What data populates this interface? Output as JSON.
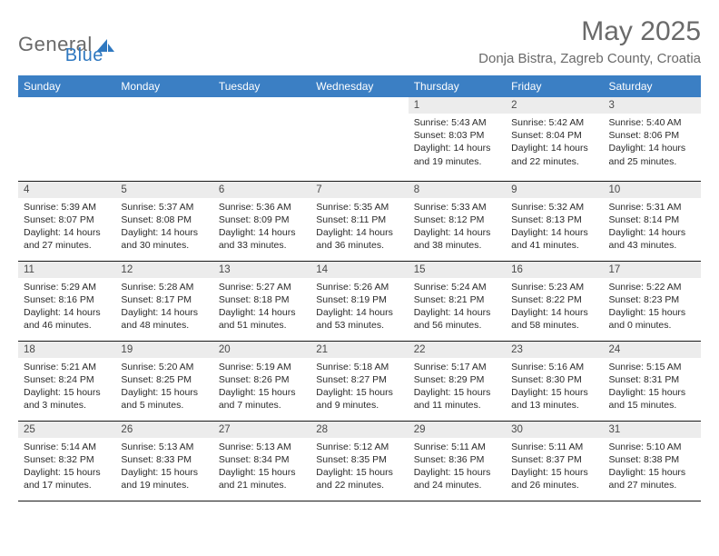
{
  "logo": {
    "part1": "General",
    "part2": "Blue"
  },
  "title": "May 2025",
  "location": "Donja Bistra, Zagreb County, Croatia",
  "colors": {
    "header_blue": "#3b7fc4",
    "title_gray": "#6a6a6a",
    "daynum_bg": "#ececec",
    "text": "#333333",
    "border": "#1a1a1a",
    "logo_blue": "#2f78c0"
  },
  "typography": {
    "title_fontsize": 30,
    "location_fontsize": 15,
    "header_fontsize": 12,
    "daynum_fontsize": 11.5,
    "details_fontsize": 10.5
  },
  "calendar": {
    "type": "table",
    "columns": [
      "Sunday",
      "Monday",
      "Tuesday",
      "Wednesday",
      "Thursday",
      "Friday",
      "Saturday"
    ],
    "start_weekday_index": 4,
    "days": [
      {
        "n": 1,
        "sunrise": "5:43 AM",
        "sunset": "8:03 PM",
        "daylight": "14 hours and 19 minutes."
      },
      {
        "n": 2,
        "sunrise": "5:42 AM",
        "sunset": "8:04 PM",
        "daylight": "14 hours and 22 minutes."
      },
      {
        "n": 3,
        "sunrise": "5:40 AM",
        "sunset": "8:06 PM",
        "daylight": "14 hours and 25 minutes."
      },
      {
        "n": 4,
        "sunrise": "5:39 AM",
        "sunset": "8:07 PM",
        "daylight": "14 hours and 27 minutes."
      },
      {
        "n": 5,
        "sunrise": "5:37 AM",
        "sunset": "8:08 PM",
        "daylight": "14 hours and 30 minutes."
      },
      {
        "n": 6,
        "sunrise": "5:36 AM",
        "sunset": "8:09 PM",
        "daylight": "14 hours and 33 minutes."
      },
      {
        "n": 7,
        "sunrise": "5:35 AM",
        "sunset": "8:11 PM",
        "daylight": "14 hours and 36 minutes."
      },
      {
        "n": 8,
        "sunrise": "5:33 AM",
        "sunset": "8:12 PM",
        "daylight": "14 hours and 38 minutes."
      },
      {
        "n": 9,
        "sunrise": "5:32 AM",
        "sunset": "8:13 PM",
        "daylight": "14 hours and 41 minutes."
      },
      {
        "n": 10,
        "sunrise": "5:31 AM",
        "sunset": "8:14 PM",
        "daylight": "14 hours and 43 minutes."
      },
      {
        "n": 11,
        "sunrise": "5:29 AM",
        "sunset": "8:16 PM",
        "daylight": "14 hours and 46 minutes."
      },
      {
        "n": 12,
        "sunrise": "5:28 AM",
        "sunset": "8:17 PM",
        "daylight": "14 hours and 48 minutes."
      },
      {
        "n": 13,
        "sunrise": "5:27 AM",
        "sunset": "8:18 PM",
        "daylight": "14 hours and 51 minutes."
      },
      {
        "n": 14,
        "sunrise": "5:26 AM",
        "sunset": "8:19 PM",
        "daylight": "14 hours and 53 minutes."
      },
      {
        "n": 15,
        "sunrise": "5:24 AM",
        "sunset": "8:21 PM",
        "daylight": "14 hours and 56 minutes."
      },
      {
        "n": 16,
        "sunrise": "5:23 AM",
        "sunset": "8:22 PM",
        "daylight": "14 hours and 58 minutes."
      },
      {
        "n": 17,
        "sunrise": "5:22 AM",
        "sunset": "8:23 PM",
        "daylight": "15 hours and 0 minutes."
      },
      {
        "n": 18,
        "sunrise": "5:21 AM",
        "sunset": "8:24 PM",
        "daylight": "15 hours and 3 minutes."
      },
      {
        "n": 19,
        "sunrise": "5:20 AM",
        "sunset": "8:25 PM",
        "daylight": "15 hours and 5 minutes."
      },
      {
        "n": 20,
        "sunrise": "5:19 AM",
        "sunset": "8:26 PM",
        "daylight": "15 hours and 7 minutes."
      },
      {
        "n": 21,
        "sunrise": "5:18 AM",
        "sunset": "8:27 PM",
        "daylight": "15 hours and 9 minutes."
      },
      {
        "n": 22,
        "sunrise": "5:17 AM",
        "sunset": "8:29 PM",
        "daylight": "15 hours and 11 minutes."
      },
      {
        "n": 23,
        "sunrise": "5:16 AM",
        "sunset": "8:30 PM",
        "daylight": "15 hours and 13 minutes."
      },
      {
        "n": 24,
        "sunrise": "5:15 AM",
        "sunset": "8:31 PM",
        "daylight": "15 hours and 15 minutes."
      },
      {
        "n": 25,
        "sunrise": "5:14 AM",
        "sunset": "8:32 PM",
        "daylight": "15 hours and 17 minutes."
      },
      {
        "n": 26,
        "sunrise": "5:13 AM",
        "sunset": "8:33 PM",
        "daylight": "15 hours and 19 minutes."
      },
      {
        "n": 27,
        "sunrise": "5:13 AM",
        "sunset": "8:34 PM",
        "daylight": "15 hours and 21 minutes."
      },
      {
        "n": 28,
        "sunrise": "5:12 AM",
        "sunset": "8:35 PM",
        "daylight": "15 hours and 22 minutes."
      },
      {
        "n": 29,
        "sunrise": "5:11 AM",
        "sunset": "8:36 PM",
        "daylight": "15 hours and 24 minutes."
      },
      {
        "n": 30,
        "sunrise": "5:11 AM",
        "sunset": "8:37 PM",
        "daylight": "15 hours and 26 minutes."
      },
      {
        "n": 31,
        "sunrise": "5:10 AM",
        "sunset": "8:38 PM",
        "daylight": "15 hours and 27 minutes."
      }
    ],
    "labels": {
      "sunrise": "Sunrise:",
      "sunset": "Sunset:",
      "daylight": "Daylight:"
    }
  }
}
